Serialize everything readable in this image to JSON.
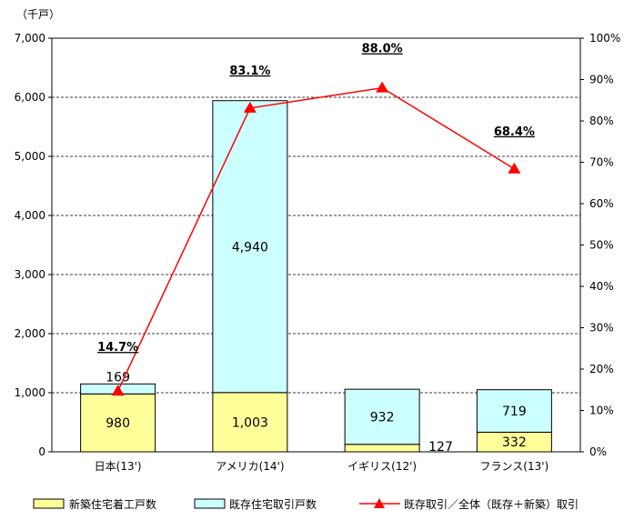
{
  "chart_data": {
    "type": "bar",
    "stacked": true,
    "unit_label": "（千戸）",
    "categories": [
      "日本(13')",
      "アメリカ(14')",
      "イギリス(12')",
      "フランス(13')"
    ],
    "series": [
      {
        "name": "新築住宅着工戸数",
        "values": [
          980,
          1003,
          127,
          332
        ],
        "labels": [
          "980",
          "1,003",
          "127",
          "332"
        ],
        "color": "#ffff99"
      },
      {
        "name": "既存住宅取引戸数",
        "values": [
          169,
          4940,
          932,
          719
        ],
        "labels": [
          "169",
          "4,940",
          "932",
          "719"
        ],
        "color": "#ccffff"
      }
    ],
    "line_series": {
      "name": "既存取引／全体（既存＋新築）取引",
      "values": [
        14.7,
        83.1,
        88.0,
        68.4
      ],
      "labels": [
        "14.7%",
        "83.1%",
        "88.0%",
        "68.4%"
      ],
      "color": "#ff0000",
      "axis": "right"
    },
    "y_left": {
      "min": 0,
      "max": 7000,
      "ticks": [
        "0",
        "1,000",
        "2,000",
        "3,000",
        "4,000",
        "5,000",
        "6,000",
        "7,000"
      ]
    },
    "y_right": {
      "min": 0,
      "max": 100,
      "ticks": [
        "0%",
        "10%",
        "20%",
        "30%",
        "40%",
        "50%",
        "60%",
        "70%",
        "80%",
        "90%",
        "100%"
      ]
    },
    "grid": true,
    "legend_position": "bottom"
  }
}
